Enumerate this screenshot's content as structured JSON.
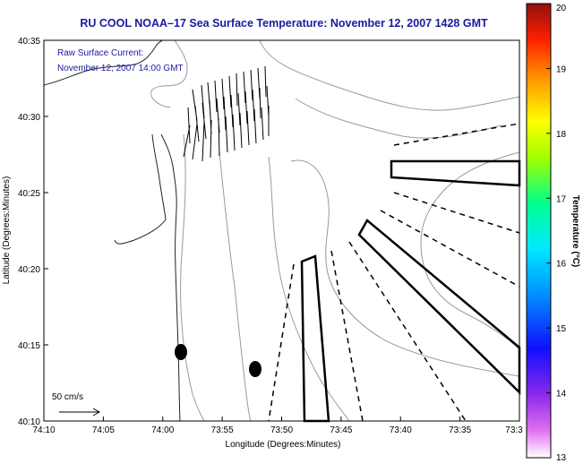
{
  "title": "RU COOL  NOAA–17  Sea Surface Temperature:  November 12, 2007 1428 GMT",
  "current_note": {
    "line1": "Raw Surface Current:",
    "line2": "November 12, 2007 14:00 GMT"
  },
  "scale_label": "50 cm/s",
  "axes": {
    "xlabel": "Longitude (Degrees:Minutes)",
    "ylabel": "Latitude (Degrees:Minutes)",
    "x_ticks": [
      "74:10",
      "74:05",
      "74:00",
      "73:55",
      "73:50",
      "73:45",
      "73:40",
      "73:35",
      "73:3"
    ],
    "y_ticks": [
      "40:35",
      "40:30",
      "40:25",
      "40:20",
      "40:15",
      "40:10"
    ]
  },
  "colorbar": {
    "label": "Temperature (°C)",
    "ticks": [
      "20",
      "19",
      "18",
      "17",
      "16",
      "15",
      "14",
      "13"
    ],
    "range": [
      13,
      20
    ]
  },
  "chart_data": {
    "type": "map",
    "title": "RU COOL  NOAA–17  Sea Surface Temperature:  November 12, 2007 1428 GMT",
    "xlabel": "Longitude (Degrees:Minutes)",
    "ylabel": "Latitude (Degrees:Minutes)",
    "xlim": [
      "74:10",
      "73:3"
    ],
    "ylim": [
      "40:10",
      "40:35"
    ],
    "colorbar_range_c": [
      13,
      20
    ],
    "colors": {
      "title": "#1a1aa0",
      "coast": "#222222",
      "isobath": "#9a9a9a",
      "frame": "#000000"
    }
  }
}
